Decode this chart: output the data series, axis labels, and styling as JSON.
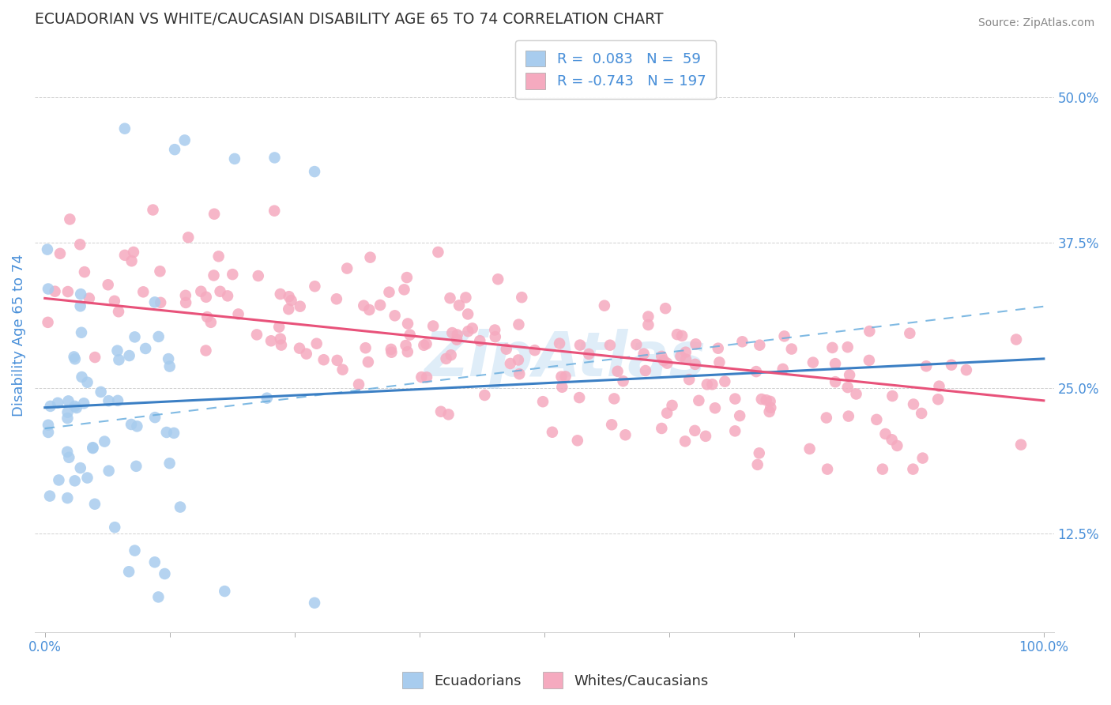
{
  "title": "ECUADORIAN VS WHITE/CAUCASIAN DISABILITY AGE 65 TO 74 CORRELATION CHART",
  "source": "Source: ZipAtlas.com",
  "ylabel": "Disability Age 65 to 74",
  "xlabel": "",
  "y_ticks": [
    0.125,
    0.25,
    0.375,
    0.5
  ],
  "y_tick_labels": [
    "12.5%",
    "25.0%",
    "37.5%",
    "50.0%"
  ],
  "ylim": [
    0.04,
    0.55
  ],
  "xlim": [
    -1,
    101
  ],
  "legend_r_blue": "0.083",
  "legend_n_blue": "59",
  "legend_r_pink": "-0.743",
  "legend_n_pink": "197",
  "blue_scatter_color": "#A8CCEE",
  "pink_scatter_color": "#F5AABF",
  "blue_line_color": "#3B7FC4",
  "pink_line_color": "#E8527A",
  "blue_dashed_color": "#6AAEDE",
  "watermark": "ZipAtlas",
  "watermark_color": "#B8D8F0",
  "background_color": "#FFFFFF",
  "grid_color": "#CCCCCC",
  "title_color": "#333333",
  "axis_label_color": "#4A90D9",
  "tick_label_color": "#4A90D9",
  "blue_seed": 7,
  "pink_seed": 13
}
